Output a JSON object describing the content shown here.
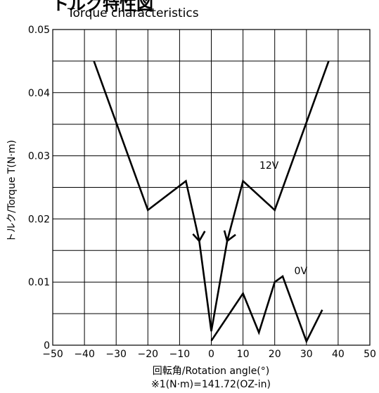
{
  "heading_partial": "トルク特性図",
  "chart_data": {
    "type": "line",
    "title": "Torque characteristics",
    "xlabel": "回転角/Rotation angle(°)",
    "ylabel": "トルク/Torque T(N·m)",
    "footnote": "※1(N·m)=141.72(OZ-in)",
    "xlim": [
      -50,
      50
    ],
    "ylim": [
      0,
      0.05
    ],
    "xticks": [
      -50,
      -40,
      -30,
      -20,
      -10,
      0,
      10,
      20,
      30,
      40,
      50
    ],
    "yticks": [
      0,
      0.01,
      0.02,
      0.03,
      0.04,
      0.05
    ],
    "ytick_labels": [
      "0",
      "0.01",
      "0.02",
      "0.03",
      "0.04",
      "0.05"
    ],
    "grid": true,
    "series": [
      {
        "name": "12V",
        "x": [
          -37,
          -20,
          -8,
          -3.8,
          0,
          5,
          10,
          20,
          37
        ],
        "y": [
          0.045,
          0.0214,
          0.026,
          0.0165,
          0.0022,
          0.0165,
          0.026,
          0.0214,
          0.045
        ]
      },
      {
        "name": "0V",
        "x": [
          0,
          10,
          15,
          20,
          22.5,
          30,
          35
        ],
        "y": [
          0.0007,
          0.0082,
          0.002,
          0.01,
          0.0109,
          0.0006,
          0.0056
        ]
      }
    ],
    "arrows": [
      {
        "series": "12V",
        "x": -3.8,
        "y": 0.0165,
        "direction": "down"
      },
      {
        "series": "12V",
        "x": 5,
        "y": 0.0165,
        "direction": "up-right"
      }
    ]
  }
}
